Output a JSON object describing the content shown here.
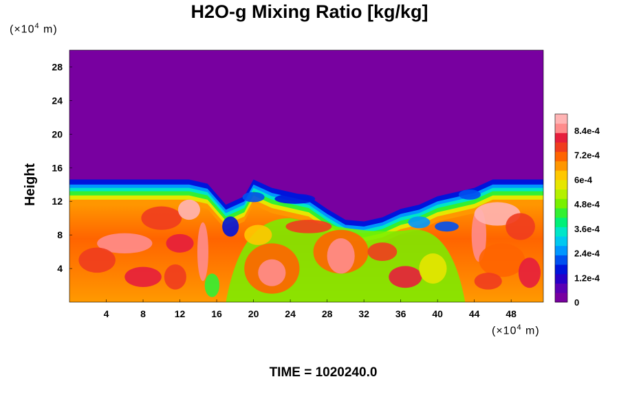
{
  "chart_data": {
    "type": "heatmap",
    "title": "H2O-g Mixing Ratio [kg/kg]",
    "ylabel": "Height",
    "y_unit_label": "(×10",
    "y_unit_exp": "4",
    "y_unit_suffix": " m)",
    "x_unit_label": "(×10",
    "x_unit_exp": "4",
    "x_unit_suffix": " m)",
    "xlim": [
      0,
      51.5
    ],
    "ylim": [
      0,
      30
    ],
    "x_ticks": [
      4,
      8,
      12,
      16,
      20,
      24,
      28,
      32,
      36,
      40,
      44,
      48
    ],
    "x_tick_labels": [
      "4",
      "8",
      "12",
      "16",
      "20",
      "24",
      "28",
      "32",
      "36",
      "40",
      "44",
      "48"
    ],
    "y_ticks": [
      4,
      8,
      12,
      16,
      20,
      24,
      28
    ],
    "y_tick_labels": [
      "4",
      "8",
      "12",
      "16",
      "20",
      "24",
      "28"
    ],
    "colorbar": {
      "min": 0,
      "max": 0.00092,
      "tick_values": [
        0,
        0.00012,
        0.00024,
        0.00036,
        0.00048,
        0.0006,
        0.00072,
        0.00084
      ],
      "tick_labels": [
        "0",
        "1.2e-4",
        "2.4e-4",
        "3.6e-4",
        "4.8e-4",
        "6e-4",
        "7.2e-4",
        "8.4e-4"
      ]
    },
    "moist_layer_top_profile": {
      "x": [
        0,
        2,
        6,
        10,
        13,
        15,
        17,
        19,
        20,
        22,
        24,
        26,
        28,
        30,
        32,
        34,
        36,
        38,
        40,
        42,
        44,
        46,
        48,
        51.5
      ],
      "top": [
        14,
        14,
        14,
        14,
        14,
        13.5,
        11,
        12,
        14,
        13,
        12.5,
        12,
        10.5,
        9.2,
        9,
        9.5,
        10.5,
        11,
        12,
        12.5,
        13,
        14,
        14,
        14
      ]
    },
    "background_value": 0,
    "lower_layer_value": 0.00075
  },
  "footer": {
    "time_label": "TIME = 1020240.0"
  },
  "colors": {
    "palette": [
      "#7800a0",
      "#5a00b4",
      "#2800c8",
      "#0014dc",
      "#0050f0",
      "#0096ff",
      "#00c8f0",
      "#00e6c8",
      "#00f078",
      "#32f032",
      "#78f000",
      "#b4f000",
      "#e6e600",
      "#ffc800",
      "#ff9600",
      "#ff6400",
      "#f03c1e",
      "#e61e3c",
      "#ff8c8c",
      "#ffb4b4"
    ]
  }
}
